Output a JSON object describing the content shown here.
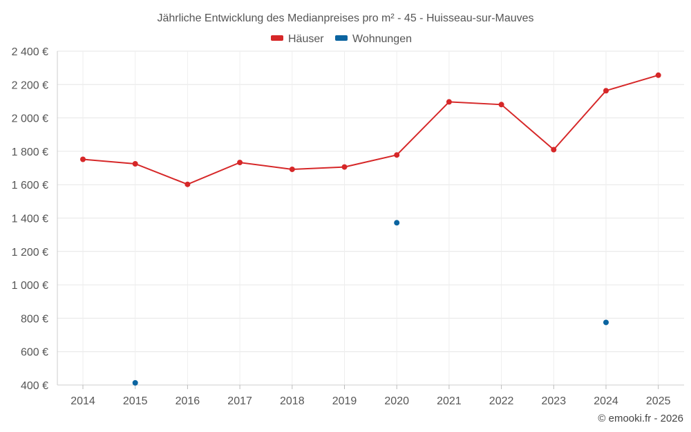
{
  "chart_data": {
    "type": "line",
    "title": "Jährliche Entwicklung des Medianpreises pro m² - 45 - Huisseau-sur-Mauves",
    "categories": [
      "2014",
      "2015",
      "2016",
      "2017",
      "2018",
      "2019",
      "2020",
      "2021",
      "2022",
      "2023",
      "2024",
      "2025"
    ],
    "ylim": [
      400,
      2400
    ],
    "ytick_values": [
      400,
      600,
      800,
      1000,
      1200,
      1400,
      1600,
      1800,
      2000,
      2200,
      2400
    ],
    "ytick_labels": [
      "400 €",
      "600 €",
      "800 €",
      "1 000 €",
      "1 200 €",
      "1 400 €",
      "1 600 €",
      "1 800 €",
      "2 000 €",
      "2 200 €",
      "2 400 €"
    ],
    "grid": true,
    "legend_position": "top-center",
    "series": [
      {
        "name": "Häuser",
        "color": "#d62728",
        "values": [
          1752,
          1725,
          1602,
          1733,
          1692,
          1706,
          1778,
          2096,
          2080,
          1810,
          2163,
          2256
        ]
      },
      {
        "name": "Wohnungen",
        "color": "#0b64a0",
        "values": [
          null,
          413,
          null,
          null,
          null,
          null,
          1372,
          null,
          null,
          null,
          775,
          null
        ]
      }
    ]
  },
  "credit": "© emooki.fr - 2026"
}
